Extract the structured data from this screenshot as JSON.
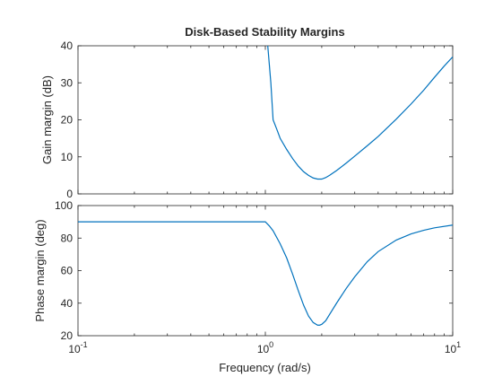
{
  "chart_data": [
    {
      "type": "line",
      "title": "Disk-Based Stability Margins",
      "xlabel": "",
      "ylabel": "Gain margin (dB)",
      "xscale": "log",
      "xlim": [
        0.1,
        10
      ],
      "ylim": [
        0,
        40
      ],
      "yticks": [
        "0",
        "10",
        "20",
        "30",
        "40"
      ],
      "xticks": [],
      "grid": false,
      "color": "#0072BD",
      "series": [
        {
          "name": "",
          "x": [
            1.03,
            1.07,
            1.1,
            1.15,
            1.2,
            1.3,
            1.4,
            1.5,
            1.6,
            1.7,
            1.8,
            1.9,
            1.95,
            2.0,
            2.1,
            2.2,
            2.4,
            2.7,
            3.0,
            3.5,
            4.0,
            5.0,
            6.0,
            7.0,
            8.0,
            9.0,
            10.0
          ],
          "y": [
            40,
            30,
            20,
            17.5,
            15,
            12,
            9.5,
            7.5,
            6,
            5,
            4.3,
            4.0,
            4.0,
            4.0,
            4.4,
            5.0,
            6.3,
            8.3,
            10.2,
            13.0,
            15.5,
            20.2,
            24.3,
            28.0,
            31.5,
            34.5,
            37.0
          ]
        }
      ]
    },
    {
      "type": "line",
      "title": "",
      "xlabel": "Frequency (rad/s)",
      "ylabel": "Phase margin (deg)",
      "xscale": "log",
      "xlim": [
        0.1,
        10
      ],
      "ylim": [
        20,
        100
      ],
      "yticks": [
        "20",
        "40",
        "60",
        "80",
        "100"
      ],
      "xticks": [
        "10",
        "10",
        "10"
      ],
      "xtick_exponents": [
        "-1",
        "0",
        "1"
      ],
      "grid": false,
      "color": "#0072BD",
      "series": [
        {
          "name": "",
          "x": [
            0.1,
            0.3,
            0.6,
            1.0,
            1.05,
            1.1,
            1.2,
            1.3,
            1.4,
            1.5,
            1.6,
            1.7,
            1.8,
            1.9,
            1.95,
            2.0,
            2.1,
            2.2,
            2.4,
            2.7,
            3.0,
            3.5,
            4.0,
            5.0,
            6.0,
            7.0,
            8.0,
            10.0
          ],
          "y": [
            90,
            90,
            90,
            90,
            87.5,
            84.5,
            76.5,
            67.8,
            57.6,
            47.6,
            38.8,
            32.1,
            28.1,
            26.5,
            26.5,
            27.0,
            29.2,
            33.0,
            40.0,
            49.0,
            56.2,
            65.5,
            71.7,
            78.8,
            82.6,
            84.8,
            86.3,
            88.0
          ]
        }
      ]
    }
  ]
}
